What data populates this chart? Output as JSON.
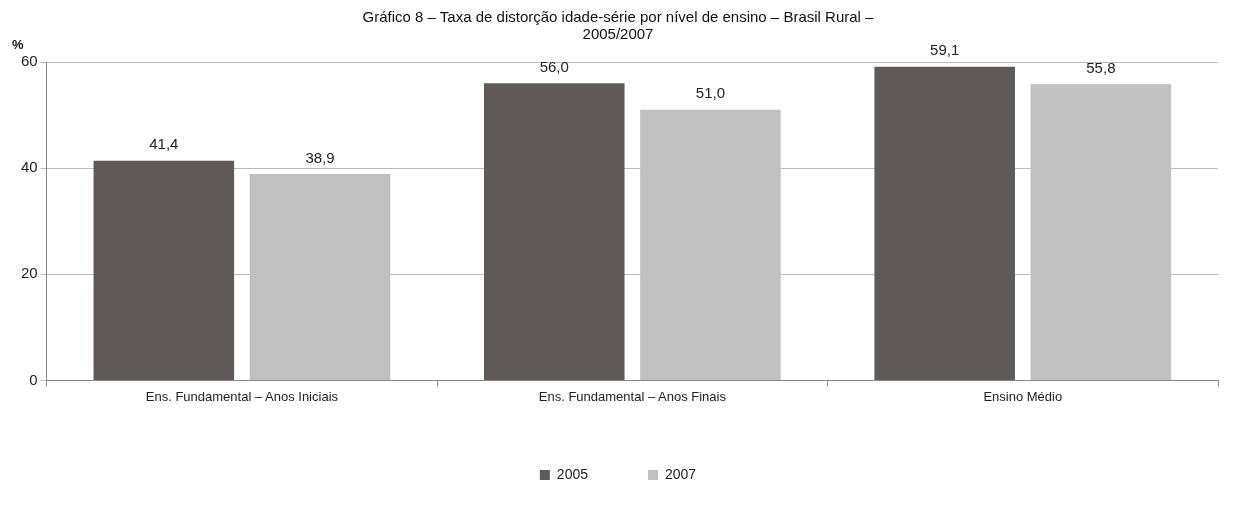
{
  "chart_data": {
    "type": "bar",
    "title": "Gráfico 8 – Taxa de distorção idade-série por nível de ensino – Brasil Rural – 2005/2007",
    "ylabel": "%",
    "categories": [
      "Ens. Fundamental – Anos Iniciais",
      "Ens. Fundamental – Anos Finais",
      "Ensino Médio"
    ],
    "series": [
      {
        "name": "2005",
        "color": "#5f5a59",
        "values": [
          41.4,
          56.0,
          59.1
        ],
        "value_labels": [
          "41,4",
          "56,0",
          "59,1"
        ]
      },
      {
        "name": "2007",
        "color": "#c0c0c0",
        "values": [
          38.9,
          51.0,
          55.8
        ],
        "value_labels": [
          "38,9",
          "51,0",
          "55,8"
        ]
      }
    ],
    "ylim": [
      0,
      60
    ],
    "yticks": [
      0,
      20,
      40,
      60
    ],
    "grid": "y",
    "legend": "bottom"
  }
}
